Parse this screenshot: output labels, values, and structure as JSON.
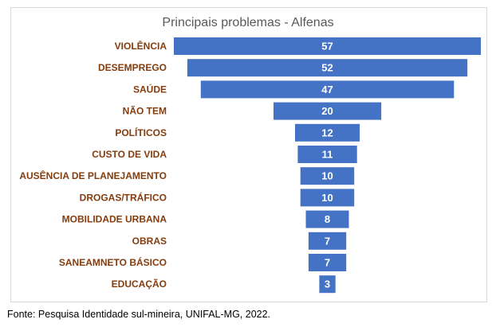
{
  "chart_data": {
    "type": "bar",
    "orientation": "horizontal-funnel",
    "title": "Principais problemas - Alfenas",
    "categories": [
      "VIOLÊNCIA",
      "DESEMPREGO",
      "SAÚDE",
      "NÃO TEM",
      "POLÍTICOS",
      "CUSTO DE VIDA",
      "AUSÊNCIA DE PLANEJAMENTO",
      "DROGAS/TRÁFICO",
      "MOBILIDADE URBANA",
      "OBRAS",
      "SANEAMNETO BÁSICO",
      "EDUCAÇÃO"
    ],
    "values": [
      57,
      52,
      47,
      20,
      12,
      11,
      10,
      10,
      8,
      7,
      7,
      3
    ],
    "bar_color": "#4472c4",
    "label_color": "#843c0c",
    "value_label_color": "#ffffff",
    "grid": false,
    "legend": "none"
  },
  "source": "Fonte: Pesquisa Identidade sul-mineira, UNIFAL-MG, 2022."
}
